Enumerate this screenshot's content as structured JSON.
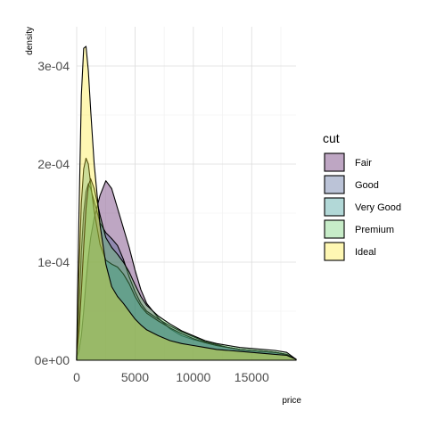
{
  "chart_data": {
    "type": "area",
    "xlabel": "price",
    "ylabel": "density",
    "xlim": [
      0,
      18800
    ],
    "ylim": [
      0,
      0.00034
    ],
    "x_ticks": [
      0,
      5000,
      10000,
      15000
    ],
    "x_tick_labels": [
      "0",
      "5000",
      "10000",
      "15000"
    ],
    "y_ticks": [
      0,
      0.0001,
      0.0002,
      0.0003
    ],
    "y_tick_labels": [
      "0e+00",
      "1e-04",
      "2e-04",
      "3e-04"
    ],
    "grid": true,
    "legend": {
      "title": "cut",
      "placement": "right"
    },
    "x": [
      0,
      200,
      400,
      600,
      800,
      1000,
      1200,
      1500,
      2000,
      2500,
      3000,
      3500,
      4000,
      4500,
      5000,
      5500,
      6000,
      7000,
      8000,
      9000,
      10000,
      11000,
      12000,
      13000,
      14000,
      15000,
      16000,
      17000,
      18000,
      18800
    ],
    "series": [
      {
        "name": "Fair",
        "color": "#440154",
        "values": [
          3e-06,
          1e-05,
          2.5e-05,
          5e-05,
          8e-05,
          0.000105,
          0.000125,
          0.000145,
          0.000168,
          0.000183,
          0.000175,
          0.000155,
          0.000135,
          0.000115,
          9.2e-05,
          7.2e-05,
          5.8e-05,
          4.3e-05,
          3.2e-05,
          2.5e-05,
          2.1e-05,
          1.8e-05,
          1.5e-05,
          1.3e-05,
          1.1e-05,
          1e-05,
          9e-06,
          8e-06,
          6e-06,
          1e-06
        ]
      },
      {
        "name": "Good",
        "color": "#3b528b",
        "values": [
          5e-06,
          5e-05,
          0.00011,
          0.00015,
          0.000172,
          0.00018,
          0.000175,
          0.000162,
          0.00014,
          0.00013,
          0.000124,
          0.000117,
          0.000103,
          8.5e-05,
          7e-05,
          5.8e-05,
          5e-05,
          4.2e-05,
          3.5e-05,
          2.9e-05,
          2.4e-05,
          1.9e-05,
          1.6e-05,
          1.3e-05,
          1.1e-05,
          1e-05,
          9e-06,
          8e-06,
          6e-06,
          1e-06
        ]
      },
      {
        "name": "Very Good",
        "color": "#21908c",
        "values": [
          6e-06,
          9e-05,
          0.00016,
          0.000195,
          0.000206,
          0.0002,
          0.00018,
          0.000152,
          0.000118,
          0.000102,
          9.8e-05,
          9.5e-05,
          8.8e-05,
          7.8e-05,
          6.5e-05,
          5.5e-05,
          4.8e-05,
          4e-05,
          3.3e-05,
          2.7e-05,
          2.2e-05,
          1.8e-05,
          1.5e-05,
          1.3e-05,
          1.1e-05,
          1e-05,
          9e-06,
          8e-06,
          6e-06,
          1e-06
        ]
      },
      {
        "name": "Premium",
        "color": "#5ec962",
        "values": [
          4e-06,
          3e-05,
          7e-05,
          0.000115,
          0.000155,
          0.000178,
          0.000185,
          0.000175,
          0.000148,
          0.000125,
          0.000115,
          0.000108,
          0.0001,
          9e-05,
          7.7e-05,
          6.5e-05,
          5.6e-05,
          4.5e-05,
          3.7e-05,
          3e-05,
          2.5e-05,
          2e-05,
          1.7e-05,
          1.5e-05,
          1.3e-05,
          1.2e-05,
          1.1e-05,
          1e-05,
          8e-06,
          1e-06
        ]
      },
      {
        "name": "Ideal",
        "color": "#fde725",
        "values": [
          8e-06,
          0.00015,
          0.00027,
          0.000318,
          0.00032,
          0.000295,
          0.000255,
          0.0002,
          0.000138,
          9.8e-05,
          7.5e-05,
          6.5e-05,
          5.8e-05,
          5e-05,
          4.2e-05,
          3.6e-05,
          3.1e-05,
          2.5e-05,
          2e-05,
          1.7e-05,
          1.5e-05,
          1.3e-05,
          1.1e-05,
          1e-05,
          9e-06,
          8e-06,
          7e-06,
          6e-06,
          5e-06,
          1e-06
        ]
      }
    ]
  }
}
